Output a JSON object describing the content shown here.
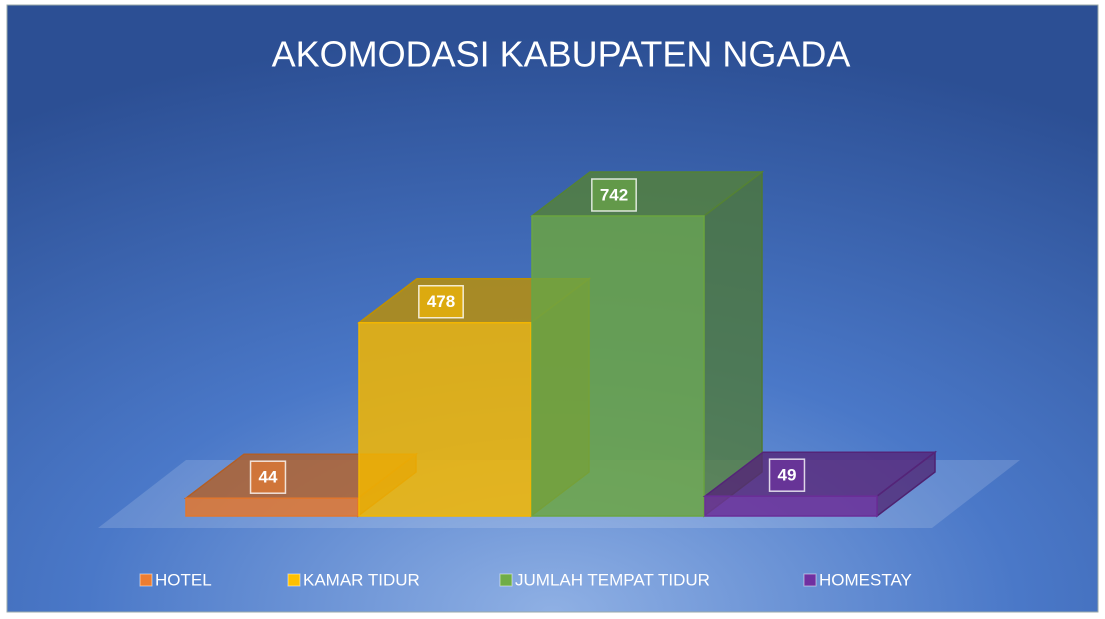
{
  "chart_data": {
    "type": "bar3d",
    "title": "AKOMODASI KABUPATEN NGADA",
    "series": [
      {
        "name": "HOTEL",
        "color": "#ED7D31",
        "values": [
          44
        ]
      },
      {
        "name": "KAMAR TIDUR",
        "color": "#FFC000",
        "values": [
          478
        ]
      },
      {
        "name": "JUMLAH TEMPAT TIDUR",
        "color": "#70AD47",
        "values": [
          742
        ]
      },
      {
        "name": "HOMESTAY",
        "color": "#7030A0",
        "values": [
          49
        ]
      }
    ],
    "legend": "bottom"
  }
}
